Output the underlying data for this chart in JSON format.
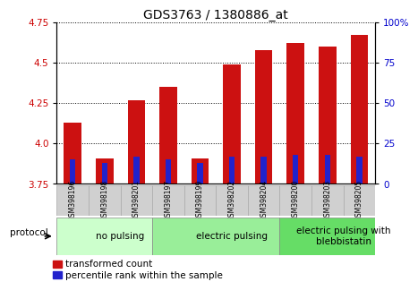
{
  "title": "GDS3763 / 1380886_at",
  "samples": [
    "GSM398196",
    "GSM398198",
    "GSM398201",
    "GSM398197",
    "GSM398199",
    "GSM398202",
    "GSM398204",
    "GSM398200",
    "GSM398203",
    "GSM398205"
  ],
  "transformed_count": [
    4.13,
    3.91,
    4.27,
    4.35,
    3.91,
    4.49,
    4.58,
    4.62,
    4.6,
    4.67
  ],
  "percentile_rank": [
    15,
    13,
    17,
    15,
    13,
    17,
    17,
    18,
    18,
    17
  ],
  "ylim_left": [
    3.75,
    4.75
  ],
  "ylim_right": [
    0,
    100
  ],
  "yticks_left": [
    3.75,
    4.0,
    4.25,
    4.5,
    4.75
  ],
  "yticks_right": [
    0,
    25,
    50,
    75,
    100
  ],
  "bar_color_red": "#cc1111",
  "bar_color_blue": "#2222cc",
  "bg_color": "#ffffff",
  "plot_bg": "#ffffff",
  "groups": [
    {
      "label": "no pulsing",
      "start": 0,
      "end": 3,
      "color": "#ccffcc"
    },
    {
      "label": "electric pulsing",
      "start": 3,
      "end": 7,
      "color": "#99ee99"
    },
    {
      "label": "electric pulsing with\nblebbistatin",
      "start": 7,
      "end": 10,
      "color": "#66dd66"
    }
  ],
  "legend_red_label": "transformed count",
  "legend_blue_label": "percentile rank within the sample",
  "bar_width": 0.55,
  "blue_bar_width": 0.18,
  "base_value": 3.75,
  "tick_label_color_left": "#cc0000",
  "tick_label_color_right": "#0000cc",
  "title_fontsize": 10,
  "tick_fontsize": 7.5,
  "group_label_fontsize": 7.5,
  "legend_fontsize": 7.5,
  "sample_fontsize": 5.5,
  "label_box_color": "#d0d0d0"
}
